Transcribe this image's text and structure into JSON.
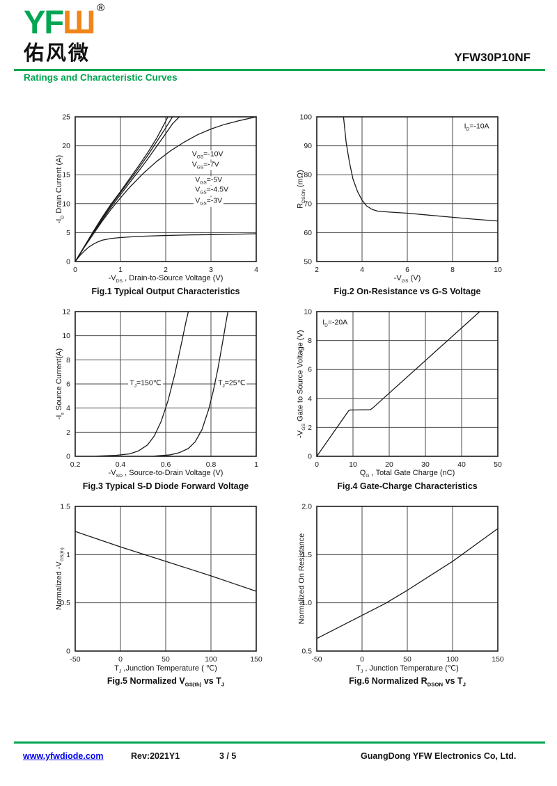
{
  "header": {
    "logo": {
      "yf": "YF",
      "w": "Ш",
      "reg": "®",
      "cn": "佑风微"
    },
    "part_number": "YFW30P10NF",
    "section_title": "Ratings and Characteristic Curves"
  },
  "colors": {
    "brand_green": "#00A651",
    "brand_orange": "#F08519",
    "link_blue": "#0000EE",
    "curve_black": "#1a1a1a"
  },
  "chart_data": [
    {
      "id": "fig1",
      "type": "line",
      "title": "Fig.1 Typical Output Characteristics",
      "xlabel": "-V_{DS} , Drain-to-Source Voltage (V)",
      "ylabel": "-I_{D} Drain Current (A)",
      "xlim": [
        0,
        4
      ],
      "ylim": [
        0,
        25
      ],
      "grid": true,
      "xticks": [
        0,
        1,
        2,
        3,
        4
      ],
      "xtick_labels": [
        "0",
        "1",
        "2",
        "3",
        "4"
      ],
      "yticks": [
        0,
        5,
        10,
        15,
        20,
        25
      ],
      "ytick_labels": [
        "0",
        "5",
        "10",
        "15",
        "20",
        "25"
      ],
      "series": [
        {
          "name": "V_{GS}=-10V",
          "points": [
            [
              0,
              0
            ],
            [
              0.2,
              2.6
            ],
            [
              0.4,
              5.2
            ],
            [
              0.6,
              7.7
            ],
            [
              0.8,
              10.0
            ],
            [
              1.0,
              12.1
            ],
            [
              1.2,
              14.3
            ],
            [
              1.4,
              16.5
            ],
            [
              1.6,
              18.8
            ],
            [
              1.8,
              21.3
            ],
            [
              1.95,
              23.5
            ],
            [
              2.05,
              25
            ]
          ]
        },
        {
          "name": "V_{GS}=-7V",
          "points": [
            [
              0,
              0
            ],
            [
              0.2,
              2.55
            ],
            [
              0.4,
              5.05
            ],
            [
              0.6,
              7.5
            ],
            [
              0.8,
              9.8
            ],
            [
              1.0,
              11.9
            ],
            [
              1.2,
              14.0
            ],
            [
              1.4,
              16.1
            ],
            [
              1.6,
              18.3
            ],
            [
              1.8,
              20.7
            ],
            [
              2.0,
              23.1
            ],
            [
              2.15,
              25
            ]
          ]
        },
        {
          "name": "V_{GS}=-5V",
          "points": [
            [
              0,
              0
            ],
            [
              0.2,
              2.5
            ],
            [
              0.4,
              4.9
            ],
            [
              0.6,
              7.25
            ],
            [
              0.8,
              9.5
            ],
            [
              1.0,
              11.55
            ],
            [
              1.2,
              13.6
            ],
            [
              1.4,
              15.6
            ],
            [
              1.6,
              17.7
            ],
            [
              1.8,
              19.9
            ],
            [
              2.0,
              22.1
            ],
            [
              2.15,
              23.8
            ],
            [
              2.3,
              25
            ]
          ]
        },
        {
          "name": "V_{GS}=-4.5V",
          "points": [
            [
              0,
              0
            ],
            [
              0.2,
              2.45
            ],
            [
              0.4,
              4.75
            ],
            [
              0.6,
              7.0
            ],
            [
              0.8,
              9.1
            ],
            [
              1.0,
              11.0
            ],
            [
              1.2,
              12.8
            ],
            [
              1.5,
              15.2
            ],
            [
              1.8,
              17.3
            ],
            [
              2.1,
              19.1
            ],
            [
              2.4,
              20.6
            ],
            [
              2.7,
              21.9
            ],
            [
              3.0,
              22.9
            ],
            [
              3.3,
              23.7
            ],
            [
              3.6,
              24.3
            ],
            [
              4.0,
              25
            ]
          ]
        },
        {
          "name": "V_{GS}=-3V",
          "points": [
            [
              0,
              0
            ],
            [
              0.1,
              1.0
            ],
            [
              0.2,
              1.8
            ],
            [
              0.3,
              2.5
            ],
            [
              0.4,
              3.0
            ],
            [
              0.5,
              3.4
            ],
            [
              0.6,
              3.7
            ],
            [
              0.8,
              4.0
            ],
            [
              1.0,
              4.15
            ],
            [
              1.3,
              4.3
            ],
            [
              1.6,
              4.4
            ],
            [
              2.0,
              4.5
            ],
            [
              2.5,
              4.6
            ],
            [
              3.0,
              4.65
            ],
            [
              3.5,
              4.72
            ],
            [
              4.0,
              4.8
            ]
          ]
        }
      ],
      "annotations": [
        {
          "text": "V_{GS}=-10V",
          "x": 2.55,
          "y": 18.4
        },
        {
          "text": "V_{GS}=-7V",
          "x": 2.55,
          "y": 16.6
        },
        {
          "text": "V_{GS}=-5V",
          "x": 2.62,
          "y": 14.0
        },
        {
          "text": "V_{GS}=-4.5V",
          "x": 2.62,
          "y": 12.2
        },
        {
          "text": "V_{GS}=-3V",
          "x": 2.62,
          "y": 10.3
        }
      ]
    },
    {
      "id": "fig2",
      "type": "line",
      "title": "Fig.2 On-Resistance vs G-S Voltage",
      "xlabel": "-V_{GS} (V)",
      "ylabel": "R_{DSON} (mΩ)",
      "xlim": [
        2,
        10
      ],
      "ylim": [
        50,
        100
      ],
      "grid": true,
      "xticks": [
        2,
        4,
        6,
        8,
        10
      ],
      "xtick_labels": [
        "2",
        "4",
        "6",
        "8",
        "10"
      ],
      "yticks": [
        50,
        60,
        70,
        80,
        90,
        100
      ],
      "ytick_labels": [
        "50",
        "60",
        "70",
        "80",
        "90",
        "100"
      ],
      "series": [
        {
          "name": "R_{DSON}",
          "points": [
            [
              3.18,
              100
            ],
            [
              3.3,
              91
            ],
            [
              3.45,
              84
            ],
            [
              3.6,
              78.5
            ],
            [
              3.8,
              74.2
            ],
            [
              4.0,
              71.2
            ],
            [
              4.2,
              69.2
            ],
            [
              4.45,
              68.0
            ],
            [
              4.7,
              67.4
            ],
            [
              5.2,
              67.1
            ],
            [
              6,
              66.7
            ],
            [
              7,
              66.0
            ],
            [
              8,
              65.3
            ],
            [
              9,
              64.6
            ],
            [
              10,
              64.0
            ]
          ]
        }
      ],
      "annotations": [
        {
          "text": "I_{D}=-10A",
          "x": 8.45,
          "y": 96.3
        }
      ]
    },
    {
      "id": "fig3",
      "type": "line",
      "title": "Fig.3 Typical S-D Diode Forward Voltage",
      "xlabel": "-V_{SD} , Source-to-Drain Voltage (V)",
      "ylabel": "-I_{s} Source Current(A)",
      "xlim": [
        0.2,
        1
      ],
      "ylim": [
        0,
        12
      ],
      "grid": true,
      "xticks": [
        0.2,
        0.4,
        0.6,
        0.8,
        1
      ],
      "xtick_labels": [
        "0.2",
        "0.4",
        "0.6",
        "0.8",
        "1"
      ],
      "yticks": [
        0,
        2,
        4,
        6,
        8,
        10,
        12
      ],
      "ytick_labels": [
        "0",
        "2",
        "4",
        "6",
        "8",
        "10",
        "12"
      ],
      "series": [
        {
          "name": "T_{J}=150℃",
          "points": [
            [
              0.3,
              0.02
            ],
            [
              0.38,
              0.08
            ],
            [
              0.44,
              0.2
            ],
            [
              0.48,
              0.45
            ],
            [
              0.52,
              0.95
            ],
            [
              0.55,
              1.7
            ],
            [
              0.58,
              2.9
            ],
            [
              0.61,
              4.6
            ],
            [
              0.64,
              6.8
            ],
            [
              0.67,
              9.4
            ],
            [
              0.69,
              11.2
            ],
            [
              0.7,
              12
            ]
          ]
        },
        {
          "name": "T_{J}=25℃",
          "points": [
            [
              0.55,
              0.02
            ],
            [
              0.62,
              0.12
            ],
            [
              0.66,
              0.3
            ],
            [
              0.7,
              0.65
            ],
            [
              0.73,
              1.2
            ],
            [
              0.76,
              2.2
            ],
            [
              0.79,
              3.9
            ],
            [
              0.81,
              5.4
            ],
            [
              0.83,
              7.2
            ],
            [
              0.85,
              9.3
            ],
            [
              0.87,
              11.5
            ],
            [
              0.875,
              12
            ]
          ]
        }
      ],
      "annotations": [
        {
          "text": "T_{J}=150℃",
          "x": 0.435,
          "y": 6
        },
        {
          "text": "T_{J}=25℃",
          "x": 0.825,
          "y": 6
        }
      ]
    },
    {
      "id": "fig4",
      "type": "line",
      "title": "Fig.4 Gate-Charge Characteristics",
      "xlabel": "Q_{G} , Total Gate Charge (nC)",
      "ylabel": "-V_{GS}   Gate to Source Voltage (V)",
      "xlim": [
        0,
        50
      ],
      "ylim": [
        0,
        10
      ],
      "grid": true,
      "xticks": [
        0,
        10,
        20,
        30,
        40,
        50
      ],
      "xtick_labels": [
        "0",
        "10",
        "20",
        "30",
        "40",
        "50"
      ],
      "yticks": [
        0,
        2,
        4,
        6,
        8,
        10
      ],
      "ytick_labels": [
        "0",
        "2",
        "4",
        "6",
        "8",
        "10"
      ],
      "series": [
        {
          "name": "gate-charge",
          "points": [
            [
              0,
              0
            ],
            [
              8.8,
              3.15
            ],
            [
              9.2,
              3.2
            ],
            [
              14.8,
              3.22
            ],
            [
              15.5,
              3.35
            ],
            [
              45,
              10
            ]
          ]
        }
      ],
      "annotations": [
        {
          "text": "I_{D}=-20A",
          "x": 1.2,
          "y": 9.2
        }
      ]
    },
    {
      "id": "fig5",
      "type": "line",
      "title": "Fig.5 Normalized V_{GS(th)} vs T_{J}",
      "xlabel": "T_{J} ,Junction Temperature ( ℃)",
      "ylabel": "Normalized -V_{GS(th)}",
      "xlim": [
        -50,
        150
      ],
      "ylim": [
        0,
        1.5
      ],
      "grid": true,
      "xticks": [
        -50,
        0,
        50,
        100,
        150
      ],
      "xtick_labels": [
        "-50",
        "0",
        "50",
        "100",
        "150"
      ],
      "yticks": [
        0,
        0.5,
        1,
        1.5
      ],
      "ytick_labels": [
        "0",
        "0.5",
        "1",
        "1.5"
      ],
      "series": [
        {
          "name": "normalized-vgs-th",
          "points": [
            [
              -50,
              1.24
            ],
            [
              -25,
              1.16
            ],
            [
              0,
              1.08
            ],
            [
              25,
              1.005
            ],
            [
              50,
              0.93
            ],
            [
              75,
              0.855
            ],
            [
              100,
              0.78
            ],
            [
              125,
              0.7
            ],
            [
              150,
              0.62
            ]
          ]
        }
      ],
      "annotations": []
    },
    {
      "id": "fig6",
      "type": "line",
      "title": "Fig.6 Normalized R_{DSON} vs T_{J}",
      "xlabel": "T_{J} , Junction Temperature (℃)",
      "ylabel": "Normalized On Resistance",
      "xlim": [
        -50,
        150
      ],
      "ylim": [
        0.5,
        2.0
      ],
      "grid": true,
      "xticks": [
        -50,
        0,
        50,
        100,
        150
      ],
      "xtick_labels": [
        "-50",
        "0",
        "50",
        "100",
        "150"
      ],
      "yticks": [
        0.5,
        1.0,
        1.5,
        2.0
      ],
      "ytick_labels": [
        "0.5",
        "1.0",
        "1.5",
        "2.0"
      ],
      "series": [
        {
          "name": "normalized-rdson",
          "points": [
            [
              -50,
              0.63
            ],
            [
              -25,
              0.75
            ],
            [
              0,
              0.87
            ],
            [
              25,
              0.99
            ],
            [
              50,
              1.13
            ],
            [
              75,
              1.28
            ],
            [
              100,
              1.43
            ],
            [
              125,
              1.6
            ],
            [
              150,
              1.77
            ]
          ]
        }
      ],
      "annotations": []
    }
  ],
  "footer": {
    "website": "www.yfwdiode.com",
    "revision": "Rev:2021Y1",
    "page": "3 / 5",
    "company": "GuangDong YFW Electronics Co, Ltd."
  }
}
